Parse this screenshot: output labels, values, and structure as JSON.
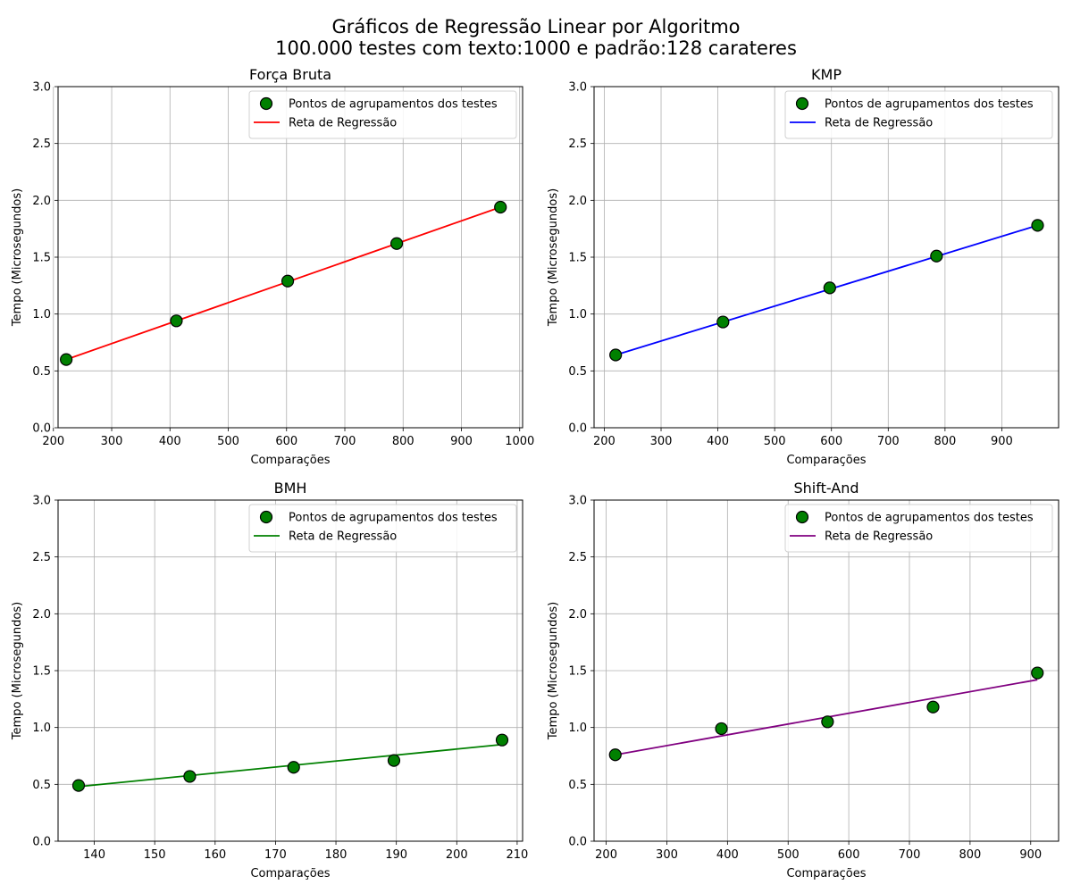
{
  "figure": {
    "title_line1": "Gráficos de Regressão Linear por Algoritmo",
    "title_line2": "100.000 testes com texto:1000 e padrão:128 carateres"
  },
  "chart_data": [
    {
      "type": "scatter",
      "title": "Força Bruta",
      "xlabel": "Comparações",
      "ylabel": "Tempo (Microsegundos)",
      "xlim": [
        208,
        1005
      ],
      "ylim": [
        0,
        3.0
      ],
      "xticks": [
        200,
        300,
        400,
        500,
        600,
        700,
        800,
        900,
        1000
      ],
      "yticks": [
        0.0,
        0.5,
        1.0,
        1.5,
        2.0,
        2.5,
        3.0
      ],
      "grid": true,
      "legend_position": "top-right",
      "legend": [
        "Pontos de agrupamentos dos testes",
        "Reta de Regressão"
      ],
      "colors": {
        "points": "#008000",
        "line": "#ff0000"
      },
      "series": [
        {
          "kind": "points",
          "x": [
            222,
            411,
            602,
            789,
            967
          ],
          "y": [
            0.6,
            0.94,
            1.29,
            1.62,
            1.94
          ]
        },
        {
          "kind": "line",
          "x": [
            222,
            967
          ],
          "y": [
            0.6,
            1.94
          ]
        }
      ]
    },
    {
      "type": "scatter",
      "title": "KMP",
      "xlabel": "Comparações",
      "ylabel": "Tempo (Microsegundos)",
      "xlim": [
        182,
        1000
      ],
      "ylim": [
        0,
        3.0
      ],
      "xticks": [
        200,
        300,
        400,
        500,
        600,
        700,
        800,
        900
      ],
      "yticks": [
        0.0,
        0.5,
        1.0,
        1.5,
        2.0,
        2.5,
        3.0
      ],
      "grid": true,
      "legend_position": "top-right",
      "legend": [
        "Pontos de agrupamentos dos testes",
        "Reta de Regressão"
      ],
      "colors": {
        "points": "#008000",
        "line": "#0000ff"
      },
      "series": [
        {
          "kind": "points",
          "x": [
            220,
            409,
            597,
            785,
            963
          ],
          "y": [
            0.64,
            0.93,
            1.23,
            1.51,
            1.78
          ]
        },
        {
          "kind": "line",
          "x": [
            220,
            963
          ],
          "y": [
            0.64,
            1.78
          ]
        }
      ]
    },
    {
      "type": "scatter",
      "title": "BMH",
      "xlabel": "Comparações",
      "ylabel": "Tempo (Microsegundos)",
      "xlim": [
        134.0,
        210.9
      ],
      "ylim": [
        0,
        3.0
      ],
      "xticks": [
        140,
        150,
        160,
        170,
        180,
        190,
        200,
        210
      ],
      "yticks": [
        0.0,
        0.5,
        1.0,
        1.5,
        2.0,
        2.5,
        3.0
      ],
      "grid": true,
      "legend_position": "top-right",
      "legend": [
        "Pontos de agrupamentos dos testes",
        "Reta de Regressão"
      ],
      "colors": {
        "points": "#008000",
        "line": "#008000"
      },
      "series": [
        {
          "kind": "points",
          "x": [
            137.4,
            155.8,
            173.0,
            189.6,
            207.5
          ],
          "y": [
            0.49,
            0.57,
            0.65,
            0.71,
            0.89
          ]
        },
        {
          "kind": "line",
          "x": [
            137.4,
            207.5
          ],
          "y": [
            0.48,
            0.85
          ]
        }
      ]
    },
    {
      "type": "scatter",
      "title": "Shift-And",
      "xlabel": "Comparações",
      "ylabel": "Tempo (Microsegundos)",
      "xlim": [
        180,
        946
      ],
      "ylim": [
        0,
        3.0
      ],
      "xticks": [
        200,
        300,
        400,
        500,
        600,
        700,
        800,
        900
      ],
      "yticks": [
        0.0,
        0.5,
        1.0,
        1.5,
        2.0,
        2.5,
        3.0
      ],
      "grid": true,
      "legend_position": "top-right",
      "legend": [
        "Pontos de agrupamentos dos testes",
        "Reta de Regressão"
      ],
      "colors": {
        "points": "#008000",
        "line": "#800080"
      },
      "series": [
        {
          "kind": "points",
          "x": [
            215,
            390,
            565,
            739,
            911
          ],
          "y": [
            0.76,
            0.99,
            1.05,
            1.18,
            1.48
          ]
        },
        {
          "kind": "line",
          "x": [
            215,
            911
          ],
          "y": [
            0.76,
            1.42
          ]
        }
      ]
    }
  ]
}
